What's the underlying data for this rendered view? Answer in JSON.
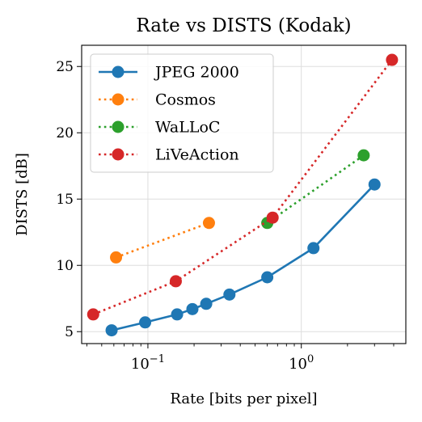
{
  "chart_data": {
    "type": "line",
    "title": "Rate vs DISTS (Kodak)",
    "xlabel": "Rate [bits per pixel]",
    "ylabel": "DISTS [dB]",
    "xscale": "log",
    "xlim": [
      0.037,
      4.8
    ],
    "ylim": [
      4.1,
      26.6
    ],
    "grid": true,
    "legend_position": "top-left",
    "x_ticks": [
      {
        "value": 0.1,
        "base": "10",
        "exp": "−1"
      },
      {
        "value": 1,
        "base": "10",
        "exp": "0"
      }
    ],
    "y_ticks": [
      {
        "value": 5,
        "label": "5"
      },
      {
        "value": 10,
        "label": "10"
      },
      {
        "value": 15,
        "label": "15"
      },
      {
        "value": 20,
        "label": "20"
      },
      {
        "value": 25,
        "label": "25"
      }
    ],
    "series": [
      {
        "name": "JPEG 2000",
        "color": "#1f77b4",
        "line_style": "solid",
        "x": [
          0.058,
          0.096,
          0.155,
          0.195,
          0.24,
          0.34,
          0.6,
          1.2,
          3.0
        ],
        "y": [
          5.1,
          5.7,
          6.3,
          6.7,
          7.1,
          7.8,
          9.1,
          11.3,
          16.1
        ]
      },
      {
        "name": "Cosmos",
        "color": "#ff7f0e",
        "line_style": "dotted",
        "x": [
          0.062,
          0.25
        ],
        "y": [
          10.6,
          13.2
        ]
      },
      {
        "name": "WaLLoC",
        "color": "#2ca02c",
        "line_style": "dotted",
        "x": [
          0.6,
          2.55
        ],
        "y": [
          13.2,
          18.3
        ]
      },
      {
        "name": "LiVeAction",
        "color": "#d62728",
        "line_style": "dotted",
        "x": [
          0.044,
          0.152,
          0.65,
          3.9
        ],
        "y": [
          6.3,
          8.8,
          13.6,
          25.5
        ]
      }
    ]
  }
}
